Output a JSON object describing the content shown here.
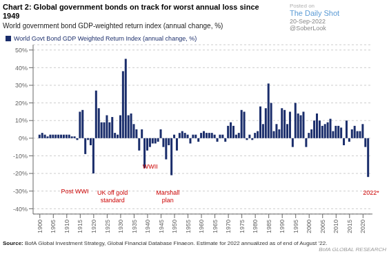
{
  "chart_data": {
    "type": "bar",
    "title": "Chart 2: Global government bonds on track for worst annual loss since 1949",
    "subtitle": "World government bond GDP-weighted return index (annual change, %)",
    "x": [
      1900,
      1901,
      1902,
      1903,
      1904,
      1905,
      1906,
      1907,
      1908,
      1909,
      1910,
      1911,
      1912,
      1913,
      1914,
      1915,
      1916,
      1917,
      1918,
      1919,
      1920,
      1921,
      1922,
      1923,
      1924,
      1925,
      1926,
      1927,
      1928,
      1929,
      1930,
      1931,
      1932,
      1933,
      1934,
      1935,
      1936,
      1937,
      1938,
      1939,
      1940,
      1941,
      1942,
      1943,
      1944,
      1945,
      1946,
      1947,
      1948,
      1949,
      1950,
      1951,
      1952,
      1953,
      1954,
      1955,
      1956,
      1957,
      1958,
      1959,
      1960,
      1961,
      1962,
      1963,
      1964,
      1965,
      1966,
      1967,
      1968,
      1969,
      1970,
      1971,
      1972,
      1973,
      1974,
      1975,
      1976,
      1977,
      1978,
      1979,
      1980,
      1981,
      1982,
      1983,
      1984,
      1985,
      1986,
      1987,
      1988,
      1989,
      1990,
      1991,
      1992,
      1993,
      1994,
      1995,
      1996,
      1997,
      1998,
      1999,
      2000,
      2001,
      2002,
      2003,
      2004,
      2005,
      2006,
      2007,
      2008,
      2009,
      2010,
      2011,
      2012,
      2013,
      2014,
      2015,
      2016,
      2017,
      2018,
      2019,
      2020,
      2021,
      2022
    ],
    "series": [
      {
        "name": "World Govt Bond GDP Weighted Return Index (annual change, %)",
        "color": "#1a2d6b",
        "values": [
          2,
          3,
          2,
          1,
          2,
          2,
          2,
          2,
          2,
          2,
          2,
          2,
          1,
          1,
          -1,
          15,
          16,
          -9,
          -1,
          -4,
          -20,
          27,
          17,
          9,
          9,
          13,
          9,
          12,
          3,
          2,
          13,
          38,
          45,
          13,
          14,
          8,
          5,
          -7,
          5,
          -17,
          -7,
          -5,
          -3,
          -3,
          -2,
          5,
          -5,
          -12,
          -4,
          -21,
          2,
          -7,
          3,
          4,
          3,
          2,
          -3,
          2,
          2,
          -2,
          3,
          4,
          3,
          3,
          3,
          2,
          -2,
          2,
          2,
          -2,
          7,
          9,
          7,
          2,
          3,
          16,
          15,
          -1,
          2,
          -1,
          3,
          4,
          18,
          8,
          17,
          31,
          20,
          4,
          8,
          5,
          17,
          16,
          8,
          15,
          -5,
          20,
          14,
          13,
          15,
          -5,
          3,
          5,
          10,
          14,
          10,
          7,
          8,
          9,
          11,
          4,
          7,
          7,
          6,
          -4,
          10,
          -2,
          5,
          7,
          4,
          4,
          8,
          -5,
          -22
        ]
      }
    ],
    "xlim": [
      1897.5,
      2023.5
    ],
    "xticks": [
      1900,
      1905,
      1910,
      1915,
      1920,
      1925,
      1930,
      1935,
      1940,
      1945,
      1950,
      1955,
      1960,
      1965,
      1970,
      1975,
      1980,
      1985,
      1990,
      1995,
      2000,
      2005,
      2010,
      2015,
      2020
    ],
    "ylim": [
      -43,
      53
    ],
    "yticks": [
      {
        "value": -40,
        "label": "-40%"
      },
      {
        "value": -30,
        "label": "-30%"
      },
      {
        "value": -20,
        "label": "-20%"
      },
      {
        "value": -10,
        "label": "-10%"
      },
      {
        "value": 0,
        "label": "0%"
      },
      {
        "value": 10,
        "label": "10%"
      },
      {
        "value": 20,
        "label": "20%"
      },
      {
        "value": 30,
        "label": "30%"
      },
      {
        "value": 40,
        "label": "40%"
      },
      {
        "value": 50,
        "label": "50%"
      }
    ],
    "grid": true,
    "legend": "upper left",
    "annotations": [
      {
        "text": "Post WWI",
        "x": 1913,
        "y": -28,
        "color": "#cc0000"
      },
      {
        "text": "UK off gold\nstandard",
        "x": 1927,
        "y": -29,
        "color": "#cc0000"
      },
      {
        "text": "WWII",
        "x": 1941,
        "y": -14,
        "color": "#cc0000"
      },
      {
        "text": "Marshall\nplan",
        "x": 1947.5,
        "y": -29,
        "color": "#cc0000"
      },
      {
        "text": "2022*",
        "x": 2023,
        "y": -29,
        "color": "#cc0000"
      }
    ],
    "watermark": [
      "Posted on",
      "The Daily Shot",
      "20-Sep-2022",
      "@SoberLook"
    ],
    "source_label": "Source:",
    "source": "BofA Global Investment Strategy, Global Financial Database Finaeon. Estimate for 2022 annualized as of end of August ’22.",
    "brand": "BofA GLOBAL RESEARCH"
  }
}
